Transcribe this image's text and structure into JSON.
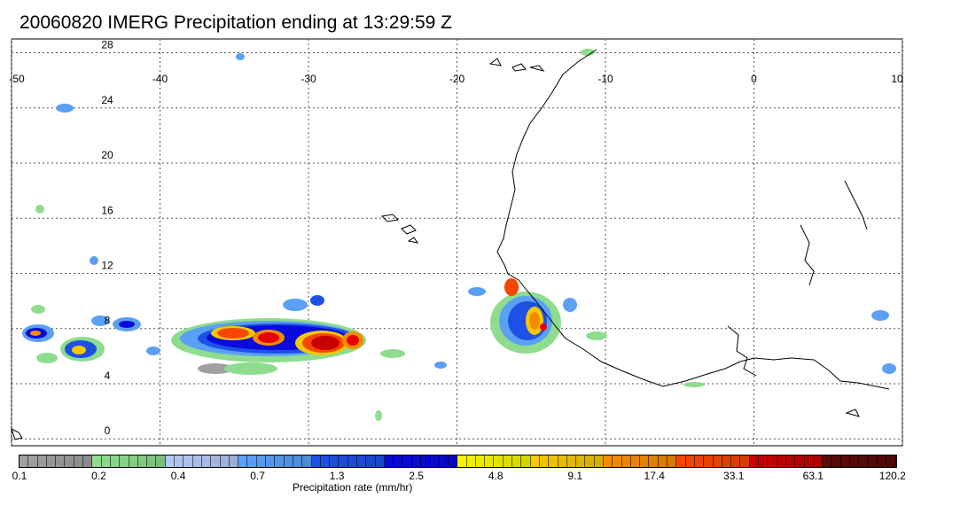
{
  "title": "20060820 IMERG Precipitation ending at 13:29:59 Z",
  "map": {
    "lon_labels": [
      "-50",
      "-40",
      "-30",
      "-20",
      "-10",
      "0",
      "10"
    ],
    "lat_labels": [
      "28",
      "24",
      "20",
      "16",
      "12",
      "8",
      "4",
      "0"
    ],
    "lon_range": [
      -50,
      10
    ],
    "lat_range": [
      -0.5,
      29
    ]
  },
  "colorbar": {
    "title": "Precipitation rate (mm/hr)",
    "labels": [
      "0.1",
      "0.2",
      "0.4",
      "0.7",
      "1.3",
      "2.5",
      "4.8",
      "9.1",
      "17.4",
      "33.1",
      "63.1",
      "120.2"
    ],
    "color_groups": [
      "#a0a0a0",
      "#8fdc8f",
      "#b4c8f5",
      "#5aa0f5",
      "#1e50e6",
      "#0a0adc",
      "#f5f500",
      "#f5c800",
      "#f58c00",
      "#f54600",
      "#c80000",
      "#5a0a0a"
    ]
  }
}
